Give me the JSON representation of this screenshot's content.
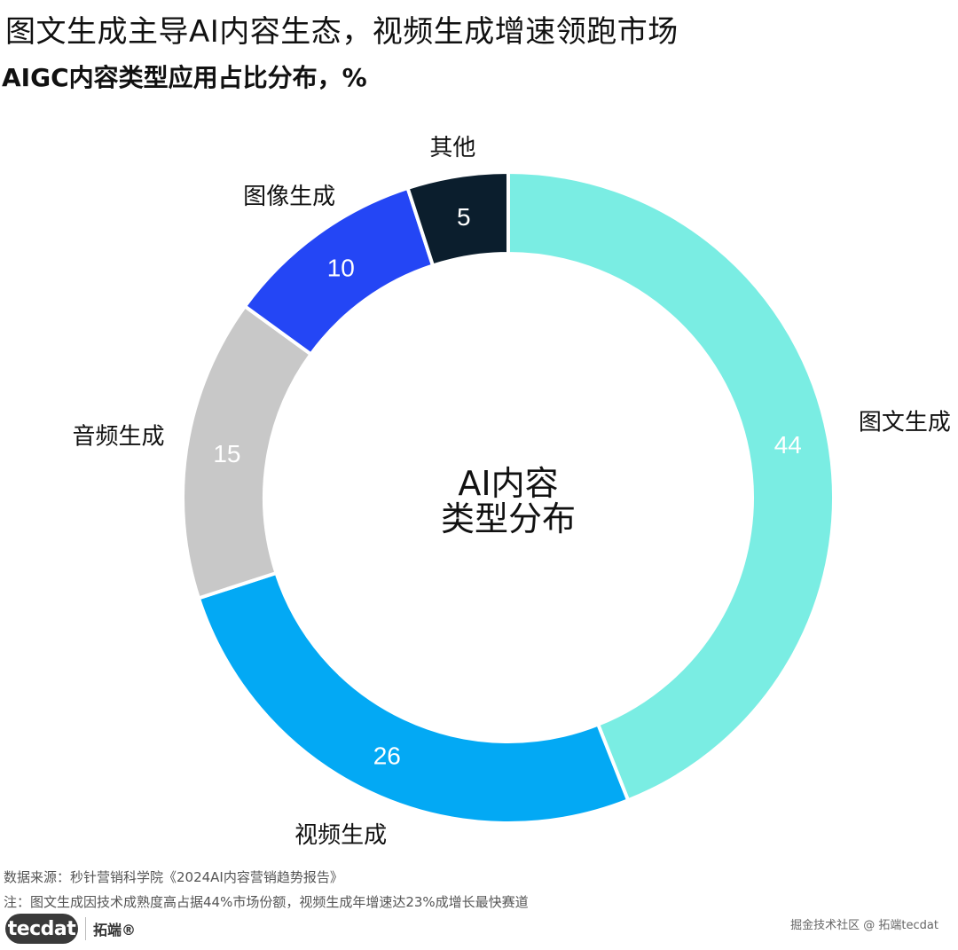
{
  "header": {
    "title": "图文生成主导AI内容生态，视频生成增速领跑市场",
    "subtitle": "AIGC内容类型应用占比分布，%"
  },
  "chart_data": {
    "type": "pie",
    "donut": true,
    "center_label": [
      "AI内容",
      "类型分布"
    ],
    "categories": [
      "图文生成",
      "视频生成",
      "音频生成",
      "图像生成",
      "其他"
    ],
    "values": [
      44,
      26,
      15,
      10,
      5
    ],
    "colors": [
      "#7AEDE3",
      "#03A9F4",
      "#C8C8C8",
      "#2446F5",
      "#0B1E2D"
    ],
    "value_label_colors": [
      "#FFFFFF",
      "#FFFFFF",
      "#FFFFFF",
      "#FFFFFF",
      "#FFFFFF"
    ],
    "title": "AIGC内容类型应用占比分布，%",
    "legend": "none"
  },
  "footer": {
    "source": "数据来源：秒针营销科学院《2024AI内容营销趋势报告》",
    "note": "注：图文生成因技术成熟度高占据44%市场份额，视频生成年增速达23%成增长最快赛道"
  },
  "branding": {
    "logo_text": "tecdat",
    "logo_cn": "拓端®",
    "watermark": "掘金技术社区 @ 拓端tecdat"
  }
}
